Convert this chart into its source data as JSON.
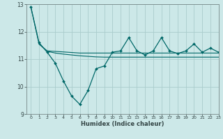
{
  "xlabel": "Humidex (Indice chaleur)",
  "bg_color": "#cce8e8",
  "line_color": "#006868",
  "grid_color": "#aacccc",
  "ylim": [
    9,
    13
  ],
  "xlim": [
    -0.5,
    23
  ],
  "yticks": [
    9,
    10,
    11,
    12,
    13
  ],
  "xticks": [
    0,
    1,
    2,
    3,
    4,
    5,
    6,
    7,
    8,
    9,
    10,
    11,
    12,
    13,
    14,
    15,
    16,
    17,
    18,
    19,
    20,
    21,
    22,
    23
  ],
  "line1_x": [
    0,
    1,
    2,
    3,
    4,
    5,
    6,
    7,
    8,
    9,
    10,
    11,
    12,
    13,
    14,
    15,
    16,
    17,
    18,
    19,
    20,
    21,
    22,
    23
  ],
  "line1_y": [
    12.9,
    11.6,
    11.25,
    10.85,
    10.2,
    9.65,
    9.35,
    9.85,
    10.65,
    10.75,
    11.25,
    11.3,
    11.78,
    11.3,
    11.15,
    11.3,
    11.78,
    11.3,
    11.2,
    11.3,
    11.55,
    11.25,
    11.4,
    11.25
  ],
  "line2_x": [
    0,
    1,
    2,
    3,
    4,
    5,
    6,
    7,
    8,
    9,
    10,
    11,
    12,
    13,
    14,
    15,
    16,
    17,
    18,
    19,
    20,
    21,
    22,
    23
  ],
  "line2_y": [
    12.9,
    11.55,
    11.3,
    11.28,
    11.26,
    11.24,
    11.22,
    11.22,
    11.22,
    11.22,
    11.22,
    11.22,
    11.22,
    11.22,
    11.22,
    11.22,
    11.22,
    11.22,
    11.22,
    11.22,
    11.22,
    11.22,
    11.22,
    11.22
  ],
  "line3_x": [
    1,
    2,
    3,
    4,
    5,
    6,
    7,
    8,
    9,
    10,
    11,
    12,
    13,
    14,
    15,
    16,
    17,
    18,
    19,
    20,
    21,
    22,
    23
  ],
  "line3_y": [
    11.55,
    11.28,
    11.22,
    11.18,
    11.15,
    11.12,
    11.1,
    11.08,
    11.07,
    11.07,
    11.07,
    11.07,
    11.07,
    11.07,
    11.07,
    11.07,
    11.07,
    11.07,
    11.07,
    11.07,
    11.07,
    11.07,
    11.07
  ]
}
